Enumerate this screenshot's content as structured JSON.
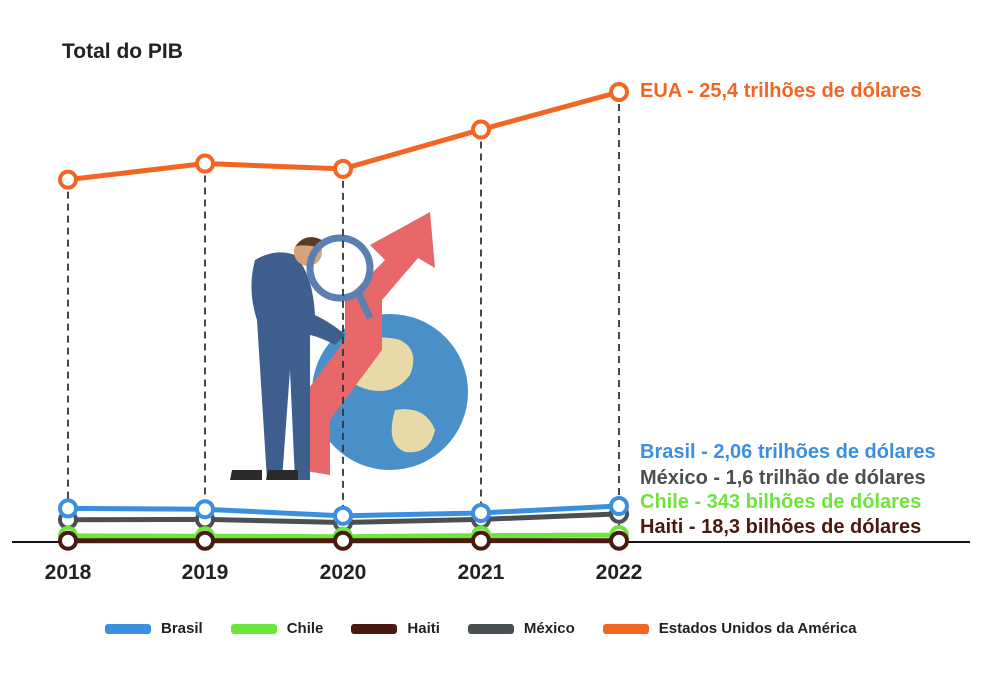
{
  "chart_data": {
    "type": "line",
    "title": "Total do PIB",
    "xlabel": "",
    "ylabel": "",
    "x": [
      "2018",
      "2019",
      "2020",
      "2021",
      "2022"
    ],
    "grid": false,
    "legend_position": "bottom",
    "series": [
      {
        "name": "Estados Unidos da América",
        "color": "#f26522",
        "values": [
          20.5,
          21.4,
          21.1,
          23.3,
          25.4
        ],
        "end_label": "EUA - 25,4 trilhões de dólares"
      },
      {
        "name": "Brasil",
        "color": "#3b8fe0",
        "values": [
          1.92,
          1.87,
          1.48,
          1.65,
          2.06
        ],
        "end_label": "Brasil - 2,06 trilhões de dólares"
      },
      {
        "name": "México",
        "color": "#4a4f52",
        "values": [
          1.25,
          1.27,
          1.09,
          1.27,
          1.6
        ],
        "end_label": "México - 1,6 trilhão de dólares"
      },
      {
        "name": "Chile",
        "color": "#6ee53a",
        "values": [
          0.3,
          0.28,
          0.25,
          0.32,
          0.343
        ],
        "end_label": "Chile - 343 bilhões de dólares"
      },
      {
        "name": "Haiti",
        "color": "#4a1a10",
        "values": [
          0.0157,
          0.0149,
          0.0145,
          0.0209,
          0.0183
        ],
        "end_label": "Haiti - 18,3 bilhões de dólares"
      }
    ],
    "legend_order": [
      "Brasil",
      "Chile",
      "Haiti",
      "México",
      "Estados Unidos da América"
    ]
  }
}
